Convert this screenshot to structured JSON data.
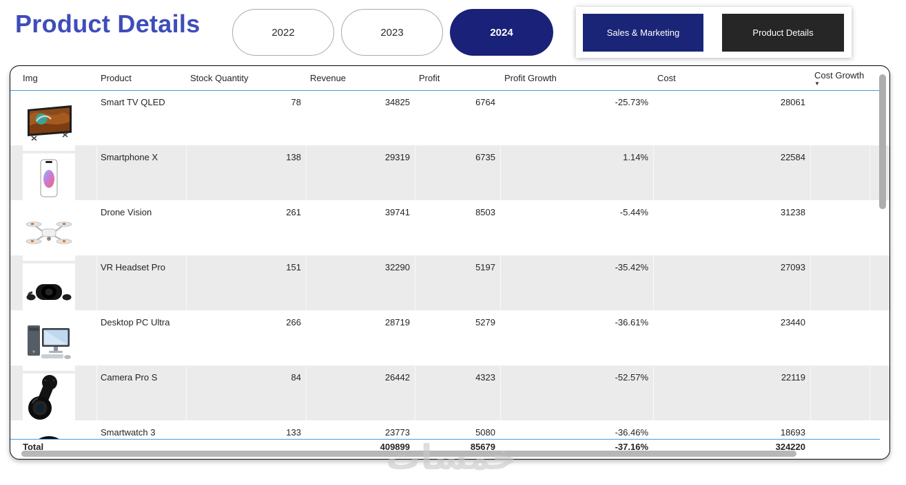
{
  "page": {
    "title": "Product Details",
    "watermark": "خمسات"
  },
  "year_filters": [
    {
      "label": "2022",
      "selected": false
    },
    {
      "label": "2023",
      "selected": false
    },
    {
      "label": "2024",
      "selected": true
    }
  ],
  "nav_buttons": [
    {
      "label": "Sales & Marketing",
      "color": "#1A2578"
    },
    {
      "label": "Product Details",
      "color": "#262626"
    }
  ],
  "colors": {
    "title_blue": "#3E4DB9",
    "selected_pill_navy": "#1A2178",
    "nav_navy": "#1A2578",
    "nav_dark": "#262626",
    "header_line_blue": "#3E9BDC",
    "alt_row_gray": "#EBEBEB",
    "scrollbar_gray": "#B0AEAC"
  },
  "table": {
    "sort_icon": "▼",
    "columns": [
      {
        "key": "img",
        "label": "Img",
        "align": "left"
      },
      {
        "key": "product",
        "label": "Product",
        "align": "left"
      },
      {
        "key": "stock_quantity",
        "label": "Stock Quantity",
        "align": "right"
      },
      {
        "key": "revenue",
        "label": "Revenue",
        "align": "right"
      },
      {
        "key": "profit",
        "label": "Profit",
        "align": "right"
      },
      {
        "key": "profit_growth",
        "label": "Profit Growth",
        "align": "right"
      },
      {
        "key": "cost",
        "label": "Cost",
        "align": "right"
      },
      {
        "key": "cost_growth",
        "label": "Cost Growth",
        "align": "right",
        "sort": "descending"
      }
    ],
    "rows": [
      {
        "image": "smart-tv-qled",
        "product": "Smart TV QLED",
        "stock_quantity": "78",
        "revenue": "34825",
        "profit": "6764",
        "profit_growth": "-25.73%",
        "cost": "28061",
        "cost_growth": ""
      },
      {
        "image": "smartphone-x",
        "product": "Smartphone X",
        "stock_quantity": "138",
        "revenue": "29319",
        "profit": "6735",
        "profit_growth": "1.14%",
        "cost": "22584",
        "cost_growth": ""
      },
      {
        "image": "drone-vision",
        "product": "Drone Vision",
        "stock_quantity": "261",
        "revenue": "39741",
        "profit": "8503",
        "profit_growth": "-5.44%",
        "cost": "31238",
        "cost_growth": ""
      },
      {
        "image": "vr-headset-pro",
        "product": "VR Headset Pro",
        "stock_quantity": "151",
        "revenue": "32290",
        "profit": "5197",
        "profit_growth": "-35.42%",
        "cost": "27093",
        "cost_growth": ""
      },
      {
        "image": "desktop-pc-ultra",
        "product": "Desktop PC Ultra",
        "stock_quantity": "266",
        "revenue": "28719",
        "profit": "5279",
        "profit_growth": "-36.61%",
        "cost": "23440",
        "cost_growth": ""
      },
      {
        "image": "camera-pro-s",
        "product": "Camera Pro S",
        "stock_quantity": "84",
        "revenue": "26442",
        "profit": "4323",
        "profit_growth": "-52.57%",
        "cost": "22119",
        "cost_growth": ""
      },
      {
        "image": "smartwatch-3",
        "product": "Smartwatch 3",
        "stock_quantity": "133",
        "revenue": "23773",
        "profit": "5080",
        "profit_growth": "-36.46%",
        "cost": "18693",
        "cost_growth": ""
      }
    ],
    "total": {
      "label": "Total",
      "stock_quantity": "",
      "revenue": "409899",
      "profit": "85679",
      "profit_growth": "-37.16%",
      "cost": "324220",
      "cost_growth": ""
    }
  }
}
